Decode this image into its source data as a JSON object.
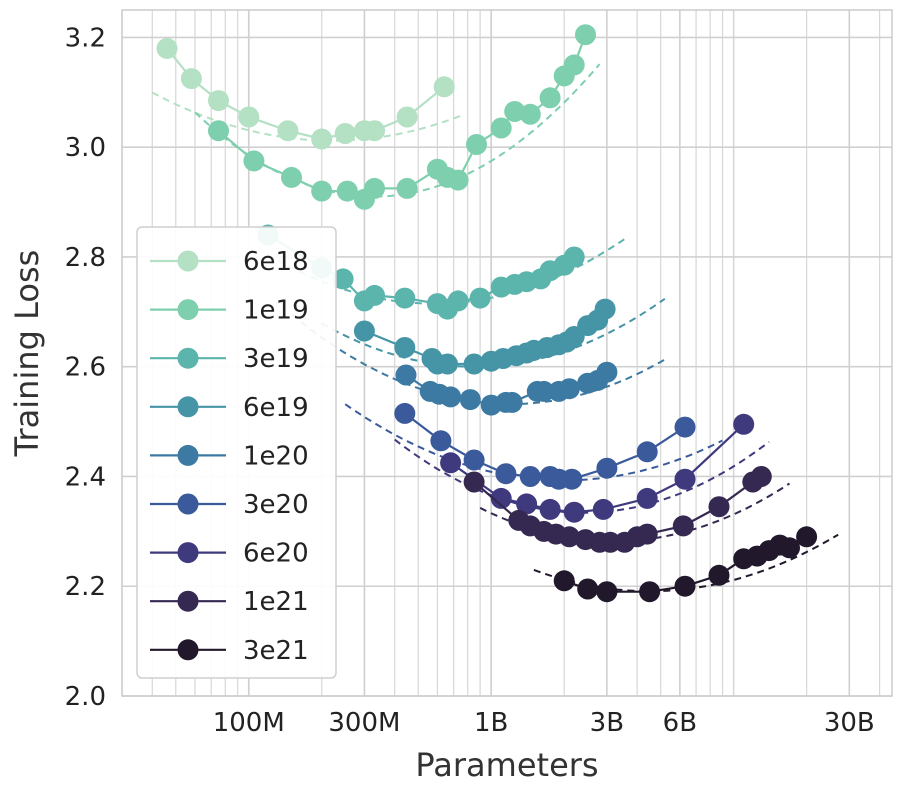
{
  "chart_data": {
    "type": "scatter",
    "title": "",
    "xlabel": "Parameters",
    "ylabel": "Training Loss",
    "xscale": "log",
    "xlim": [
      30000000,
      45000000000
    ],
    "ylim": [
      2.0,
      3.25
    ],
    "grid": true,
    "legend": "center-left",
    "xticks": [
      {
        "value": 100000000,
        "label": "100M"
      },
      {
        "value": 300000000,
        "label": "300M"
      },
      {
        "value": 1000000000,
        "label": "1B"
      },
      {
        "value": 3000000000,
        "label": "3B"
      },
      {
        "value": 6000000000,
        "label": "6B"
      },
      {
        "value": 30000000000,
        "label": "30B"
      }
    ],
    "yticks": [
      {
        "value": 2.0,
        "label": "2.0"
      },
      {
        "value": 2.2,
        "label": "2.2"
      },
      {
        "value": 2.4,
        "label": "2.4"
      },
      {
        "value": 2.6,
        "label": "2.6"
      },
      {
        "value": 2.8,
        "label": "2.8"
      },
      {
        "value": 3.0,
        "label": "3.0"
      },
      {
        "value": 3.2,
        "label": "3.2"
      }
    ],
    "series": [
      {
        "name": "6e18",
        "color": "#b4e0c4",
        "x": [
          46000000,
          58000000,
          75000000,
          100000000,
          145000000,
          200000000,
          250000000,
          300000000,
          330000000,
          450000000,
          640000000
        ],
        "y": [
          3.18,
          3.125,
          3.085,
          3.055,
          3.03,
          3.015,
          3.025,
          3.03,
          3.03,
          3.055,
          3.11
        ],
        "fit": {
          "min_x": 220000000,
          "min_y": 3.012,
          "k": 0.16,
          "x_range": [
            40000000,
            750000000
          ]
        }
      },
      {
        "name": "1e19",
        "color": "#7ecfad",
        "x": [
          75000000,
          105000000,
          150000000,
          200000000,
          255000000,
          300000000,
          330000000,
          450000000,
          600000000,
          660000000,
          730000000,
          870000000,
          1100000000,
          1250000000,
          1450000000,
          1750000000,
          2000000000,
          2200000000,
          2450000000
        ],
        "y": [
          3.03,
          2.975,
          2.945,
          2.92,
          2.92,
          2.905,
          2.925,
          2.925,
          2.96,
          2.945,
          2.94,
          3.005,
          3.035,
          3.065,
          3.06,
          3.09,
          3.13,
          3.15,
          3.205
        ],
        "fit": {
          "min_x": 330000000,
          "min_y": 2.91,
          "k": 0.28,
          "x_range": [
            60000000,
            2800000000
          ]
        }
      },
      {
        "name": "3e19",
        "color": "#5cb5ad",
        "x": [
          120000000,
          200000000,
          245000000,
          300000000,
          330000000,
          440000000,
          600000000,
          660000000,
          730000000,
          900000000,
          1100000000,
          1250000000,
          1400000000,
          1600000000,
          1750000000,
          2000000000,
          2200000000
        ],
        "y": [
          2.84,
          2.78,
          2.76,
          2.72,
          2.73,
          2.725,
          2.715,
          2.705,
          2.72,
          2.725,
          2.745,
          2.75,
          2.755,
          2.76,
          2.775,
          2.785,
          2.8
        ],
        "fit": {
          "min_x": 580000000,
          "min_y": 2.715,
          "k": 0.19,
          "x_range": [
            120000000,
            3600000000
          ]
        }
      },
      {
        "name": "6e19",
        "color": "#4595a7",
        "x": [
          300000000,
          440000000,
          570000000,
          600000000,
          660000000,
          850000000,
          1000000000,
          1120000000,
          1270000000,
          1400000000,
          1500000000,
          1700000000,
          1900000000,
          2050000000,
          2200000000,
          2500000000,
          2750000000,
          2950000000
        ],
        "y": [
          2.665,
          2.635,
          2.615,
          2.605,
          2.605,
          2.605,
          2.61,
          2.615,
          2.62,
          2.625,
          2.63,
          2.635,
          2.64,
          2.645,
          2.655,
          2.675,
          2.685,
          2.705
        ],
        "fit": {
          "min_x": 850000000,
          "min_y": 2.6,
          "k": 0.2,
          "x_range": [
            200000000,
            5200000000
          ]
        }
      },
      {
        "name": "1e20",
        "color": "#3d7aa3",
        "x": [
          445000000,
          560000000,
          610000000,
          680000000,
          820000000,
          1000000000,
          1150000000,
          1220000000,
          1550000000,
          1650000000,
          1900000000,
          2100000000,
          2500000000,
          2750000000,
          3000000000
        ],
        "y": [
          2.585,
          2.555,
          2.55,
          2.545,
          2.54,
          2.53,
          2.535,
          2.535,
          2.555,
          2.555,
          2.555,
          2.56,
          2.57,
          2.575,
          2.59
        ],
        "fit": {
          "min_x": 1200000000,
          "min_y": 2.532,
          "k": 0.2,
          "x_range": [
            150000000,
            5200000000
          ]
        }
      },
      {
        "name": "3e20",
        "color": "#3a5a9c",
        "x": [
          440000000,
          620000000,
          850000000,
          1150000000,
          1450000000,
          1750000000,
          1900000000,
          2150000000,
          3000000000,
          4400000000,
          6300000000
        ],
        "y": [
          2.515,
          2.465,
          2.43,
          2.405,
          2.4,
          2.4,
          2.395,
          2.395,
          2.415,
          2.445,
          2.49
        ],
        "fit": {
          "min_x": 2000000000,
          "min_y": 2.393,
          "k": 0.17,
          "x_range": [
            250000000,
            9000000000
          ]
        }
      },
      {
        "name": "6e20",
        "color": "#3f3a7e",
        "x": [
          680000000,
          1100000000,
          1400000000,
          1750000000,
          2200000000,
          2900000000,
          4400000000,
          6300000000,
          11000000000
        ],
        "y": [
          2.425,
          2.36,
          2.35,
          2.34,
          2.335,
          2.34,
          2.36,
          2.395,
          2.495
        ],
        "fit": {
          "min_x": 2400000000,
          "min_y": 2.334,
          "k": 0.22,
          "x_range": [
            400000000,
            14000000000
          ]
        }
      },
      {
        "name": "1e21",
        "color": "#352851",
        "x": [
          850000000,
          1300000000,
          1450000000,
          1650000000,
          1850000000,
          2100000000,
          2450000000,
          2800000000,
          3100000000,
          3550000000,
          4000000000,
          4400000000,
          6200000000,
          8700000000,
          12000000000,
          13000000000
        ],
        "y": [
          2.39,
          2.32,
          2.31,
          2.3,
          2.295,
          2.29,
          2.285,
          2.28,
          2.28,
          2.28,
          2.29,
          2.295,
          2.31,
          2.345,
          2.39,
          2.4
        ],
        "fit": {
          "min_x": 3200000000,
          "min_y": 2.282,
          "k": 0.2,
          "x_range": [
            900000000,
            17000000000
          ]
        }
      },
      {
        "name": "3e21",
        "color": "#22182c",
        "x": [
          2000000000,
          2500000000,
          3000000000,
          4500000000,
          6300000000,
          8700000000,
          11000000000,
          12500000000,
          14000000000,
          15500000000,
          17000000000,
          20000000000
        ],
        "y": [
          2.21,
          2.195,
          2.19,
          2.19,
          2.2,
          2.22,
          2.25,
          2.255,
          2.265,
          2.275,
          2.27,
          2.29
        ],
        "fit": {
          "min_x": 4500000000,
          "min_y": 2.191,
          "k": 0.17,
          "x_range": [
            1500000000,
            27000000000
          ]
        }
      }
    ]
  }
}
